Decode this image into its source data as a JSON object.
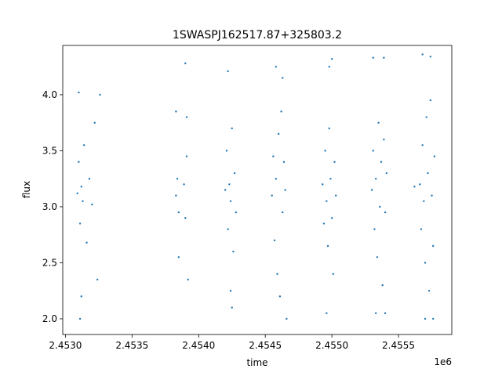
{
  "chart_data": {
    "type": "scatter",
    "title": "1SWASPJ162517.87+325803.2",
    "xlabel": "time",
    "ylabel": "flux",
    "x_offset_label": "1e6",
    "xlim": [
      2.45298,
      2.4559
    ],
    "ylim": [
      1.86,
      4.44
    ],
    "x_ticks": [
      2.453,
      2.4535,
      2.454,
      2.4545,
      2.455,
      2.4555
    ],
    "x_tick_labels": [
      "2.4530",
      "2.4535",
      "2.4540",
      "2.4545",
      "2.4550",
      "2.4555"
    ],
    "y_ticks": [
      2.0,
      2.5,
      3.0,
      3.5,
      4.0
    ],
    "y_tick_labels": [
      "2.0",
      "2.5",
      "3.0",
      "3.5",
      "4.0"
    ],
    "grid": false,
    "color": "#1f77b4",
    "series": [
      {
        "points": [
          {
            "x": 2.45309,
            "y": 3.12
          },
          {
            "x": 2.4531,
            "y": 3.4
          },
          {
            "x": 2.45311,
            "y": 2.85
          },
          {
            "x": 2.45312,
            "y": 3.18
          },
          {
            "x": 2.45313,
            "y": 3.05
          },
          {
            "x": 2.4531,
            "y": 4.02
          },
          {
            "x": 2.45312,
            "y": 2.2
          },
          {
            "x": 2.45314,
            "y": 3.55
          },
          {
            "x": 2.45316,
            "y": 2.68
          },
          {
            "x": 2.45318,
            "y": 3.25
          },
          {
            "x": 2.4532,
            "y": 3.02
          },
          {
            "x": 2.45322,
            "y": 3.75
          },
          {
            "x": 2.45324,
            "y": 2.35
          },
          {
            "x": 2.45326,
            "y": 4.0
          },
          {
            "x": 2.45311,
            "y": 2.0
          },
          {
            "x": 2.45383,
            "y": 3.1
          },
          {
            "x": 2.45384,
            "y": 3.25
          },
          {
            "x": 2.45385,
            "y": 2.95
          },
          {
            "x": 2.45383,
            "y": 3.85
          },
          {
            "x": 2.45385,
            "y": 2.55
          },
          {
            "x": 2.45389,
            "y": 3.2
          },
          {
            "x": 2.4539,
            "y": 2.9
          },
          {
            "x": 2.45391,
            "y": 3.45
          },
          {
            "x": 2.4539,
            "y": 4.28
          },
          {
            "x": 2.45392,
            "y": 2.35
          },
          {
            "x": 2.45391,
            "y": 3.8
          },
          {
            "x": 2.4542,
            "y": 3.15
          },
          {
            "x": 2.45421,
            "y": 3.5
          },
          {
            "x": 2.45422,
            "y": 2.8
          },
          {
            "x": 2.45423,
            "y": 3.2
          },
          {
            "x": 2.45424,
            "y": 3.05
          },
          {
            "x": 2.45425,
            "y": 3.7
          },
          {
            "x": 2.45426,
            "y": 2.6
          },
          {
            "x": 2.45427,
            "y": 3.3
          },
          {
            "x": 2.45428,
            "y": 2.95
          },
          {
            "x": 2.45422,
            "y": 4.21
          },
          {
            "x": 2.45424,
            "y": 2.25
          },
          {
            "x": 2.45425,
            "y": 2.1
          },
          {
            "x": 2.45455,
            "y": 3.1
          },
          {
            "x": 2.45456,
            "y": 3.45
          },
          {
            "x": 2.45457,
            "y": 2.7
          },
          {
            "x": 2.45458,
            "y": 3.25
          },
          {
            "x": 2.45459,
            "y": 2.4
          },
          {
            "x": 2.4546,
            "y": 3.65
          },
          {
            "x": 2.45461,
            "y": 2.2
          },
          {
            "x": 2.45462,
            "y": 3.85
          },
          {
            "x": 2.45463,
            "y": 2.95
          },
          {
            "x": 2.45464,
            "y": 3.4
          },
          {
            "x": 2.45465,
            "y": 3.15
          },
          {
            "x": 2.45466,
            "y": 2.0
          },
          {
            "x": 2.45458,
            "y": 4.25
          },
          {
            "x": 2.45463,
            "y": 4.15
          },
          {
            "x": 2.45493,
            "y": 3.2
          },
          {
            "x": 2.45494,
            "y": 2.85
          },
          {
            "x": 2.45495,
            "y": 3.5
          },
          {
            "x": 2.45496,
            "y": 3.05
          },
          {
            "x": 2.45497,
            "y": 2.65
          },
          {
            "x": 2.45498,
            "y": 3.7
          },
          {
            "x": 2.45499,
            "y": 3.25
          },
          {
            "x": 2.455,
            "y": 2.9
          },
          {
            "x": 2.45501,
            "y": 2.4
          },
          {
            "x": 2.45502,
            "y": 3.4
          },
          {
            "x": 2.45503,
            "y": 3.1
          },
          {
            "x": 2.45498,
            "y": 4.25
          },
          {
            "x": 2.455,
            "y": 4.32
          },
          {
            "x": 2.45496,
            "y": 2.05
          },
          {
            "x": 2.4553,
            "y": 3.15
          },
          {
            "x": 2.45531,
            "y": 3.5
          },
          {
            "x": 2.45532,
            "y": 2.8
          },
          {
            "x": 2.45533,
            "y": 3.25
          },
          {
            "x": 2.45534,
            "y": 2.55
          },
          {
            "x": 2.45535,
            "y": 3.75
          },
          {
            "x": 2.45536,
            "y": 3.0
          },
          {
            "x": 2.45537,
            "y": 3.4
          },
          {
            "x": 2.45538,
            "y": 2.3
          },
          {
            "x": 2.45539,
            "y": 3.6
          },
          {
            "x": 2.4554,
            "y": 2.95
          },
          {
            "x": 2.45541,
            "y": 3.3
          },
          {
            "x": 2.45531,
            "y": 4.33
          },
          {
            "x": 2.45539,
            "y": 4.33
          },
          {
            "x": 2.45533,
            "y": 2.05
          },
          {
            "x": 2.4554,
            "y": 2.05
          },
          {
            "x": 2.45566,
            "y": 3.2
          },
          {
            "x": 2.45567,
            "y": 2.8
          },
          {
            "x": 2.45568,
            "y": 3.55
          },
          {
            "x": 2.45569,
            "y": 3.05
          },
          {
            "x": 2.4557,
            "y": 2.5
          },
          {
            "x": 2.45571,
            "y": 3.8
          },
          {
            "x": 2.45572,
            "y": 3.3
          },
          {
            "x": 2.45573,
            "y": 2.25
          },
          {
            "x": 2.45574,
            "y": 3.95
          },
          {
            "x": 2.45575,
            "y": 3.1
          },
          {
            "x": 2.45576,
            "y": 2.65
          },
          {
            "x": 2.45577,
            "y": 3.45
          },
          {
            "x": 2.45568,
            "y": 4.36
          },
          {
            "x": 2.45574,
            "y": 4.34
          },
          {
            "x": 2.4557,
            "y": 2.0
          },
          {
            "x": 2.45576,
            "y": 2.0
          },
          {
            "x": 2.45562,
            "y": 3.18
          }
        ]
      }
    ]
  }
}
